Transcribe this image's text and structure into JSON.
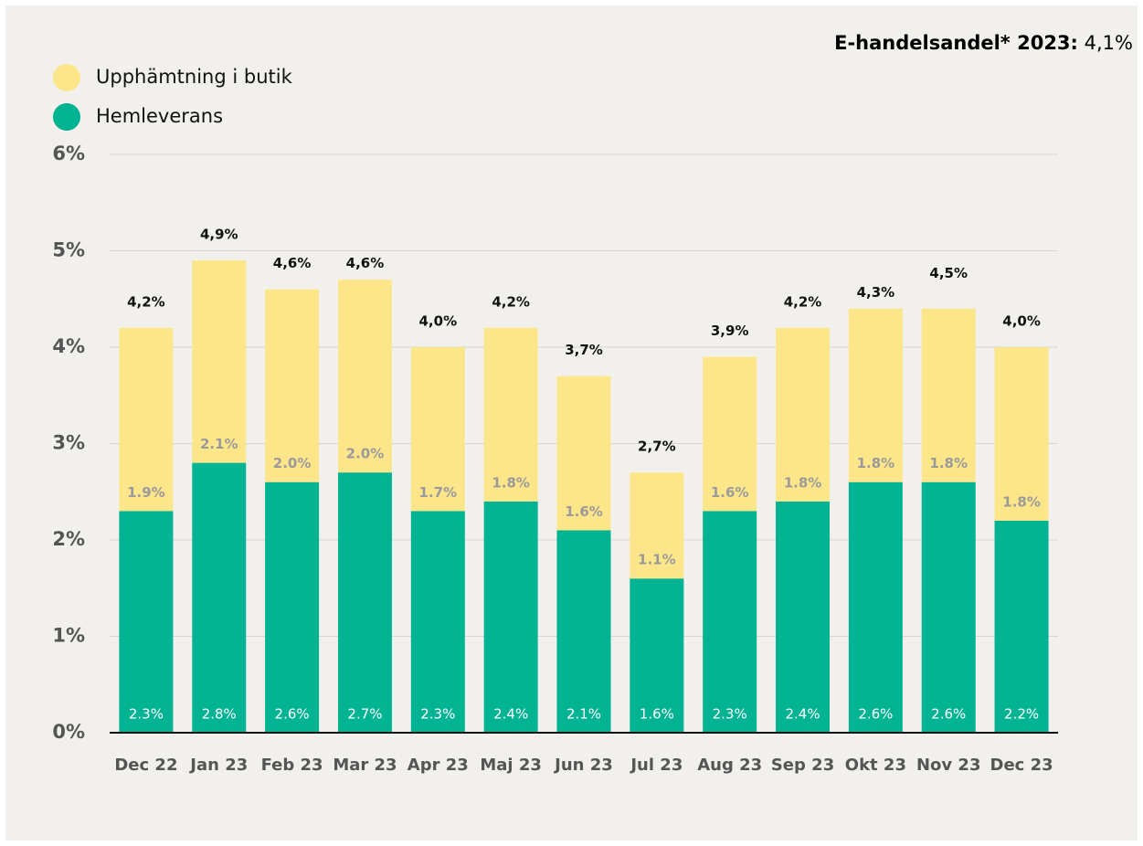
{
  "chart_data": {
    "type": "stacked_bar",
    "annotation": {
      "label": "E-handelsandel* 2023:",
      "value": "4,1%"
    },
    "categories": [
      "Dec 22",
      "Jan 23",
      "Feb 23",
      "Mar 23",
      "Apr 23",
      "Maj 23",
      "Jun 23",
      "Jul 23",
      "Aug 23",
      "Sep 23",
      "Okt 23",
      "Nov 23",
      "Dec 23"
    ],
    "series": [
      {
        "name": "Hemleverans",
        "color": "#00b493",
        "values": [
          2.3,
          2.8,
          2.6,
          2.7,
          2.3,
          2.4,
          2.1,
          1.6,
          2.3,
          2.4,
          2.6,
          2.6,
          2.2
        ],
        "value_labels": [
          "2.3%",
          "2.8%",
          "2.6%",
          "2.7%",
          "2.3%",
          "2.4%",
          "2.1%",
          "1.6%",
          "2.3%",
          "2.4%",
          "2.6%",
          "2.6%",
          "2.2%"
        ]
      },
      {
        "name": "Upphämtning i butik",
        "color": "#fde68a",
        "values": [
          1.9,
          2.1,
          2.0,
          2.0,
          1.7,
          1.8,
          1.6,
          1.1,
          1.6,
          1.8,
          1.8,
          1.8,
          1.8
        ],
        "value_labels": [
          "1.9%",
          "2.1%",
          "2.0%",
          "2.0%",
          "1.7%",
          "1.8%",
          "1.6%",
          "1.1%",
          "1.6%",
          "1.8%",
          "1.8%",
          "1.8%",
          "1.8%"
        ]
      }
    ],
    "totals": {
      "values": [
        4.2,
        4.9,
        4.6,
        4.6,
        4.0,
        4.2,
        3.7,
        2.7,
        3.9,
        4.2,
        4.3,
        4.5,
        4.0
      ],
      "value_labels": [
        "4,2%",
        "4,9%",
        "4,6%",
        "4,6%",
        "4,0%",
        "4,2%",
        "3,7%",
        "2,7%",
        "3,9%",
        "4,2%",
        "4,3%",
        "4,5%",
        "4,0%"
      ]
    },
    "ylim": [
      0,
      6
    ],
    "yticks": [
      {
        "value": 0,
        "label": "0%"
      },
      {
        "value": 1,
        "label": "1%"
      },
      {
        "value": 2,
        "label": "2%"
      },
      {
        "value": 3,
        "label": "3%"
      },
      {
        "value": 4,
        "label": "4%"
      },
      {
        "value": 5,
        "label": "5%"
      },
      {
        "value": 6,
        "label": "6%"
      }
    ],
    "grid": true
  }
}
